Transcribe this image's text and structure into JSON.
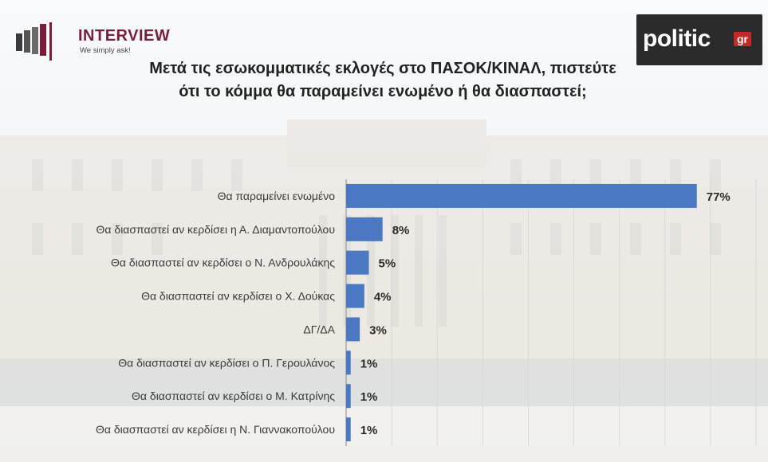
{
  "header": {
    "brand_left": "INTERVIEW",
    "brand_left_tagline": "We simply ask!",
    "brand_right": "politic",
    "brand_right_suffix": "gr"
  },
  "colors": {
    "bar": "#4a78c2",
    "brand_left": "#7a1c3a",
    "brand_right_bg": "#2b2b2b",
    "brand_right_accent": "#c62828"
  },
  "chart_data": {
    "type": "bar",
    "orientation": "horizontal",
    "title": "Μετά τις εσωκομματικές εκλογές στο ΠΑΣΟΚ/ΚΙΝΑΛ, πιστεύτε ότι το κόμμα θα παραμείνει ενωμένο ή θα διασπαστεί;",
    "categories": [
      "Θα παραμείνει ενωμένο",
      "Θα διασπαστεί αν κερδίσει η Α. Διαμαντοπούλου",
      "Θα διασπαστεί αν κερδίσει ο Ν. Ανδρουλάκης",
      "Θα διασπαστεί αν κερδίσει ο Χ. Δούκας",
      "ΔΓ/ΔΑ",
      "Θα διασπαστεί αν κερδίσει ο Π. Γερουλάνος",
      "Θα διασπαστεί αν κερδίσει ο Μ. Κατρίνης",
      "Θα διασπαστεί αν κερδίσει η Ν. Γιαννακοπούλου"
    ],
    "values": [
      77,
      8,
      5,
      4,
      3,
      1,
      1,
      1
    ],
    "value_labels": [
      "77%",
      "8%",
      "5%",
      "4%",
      "3%",
      "1%",
      "1%",
      "1%"
    ],
    "xlim": [
      0,
      90
    ],
    "grid": true,
    "legend": "none"
  }
}
